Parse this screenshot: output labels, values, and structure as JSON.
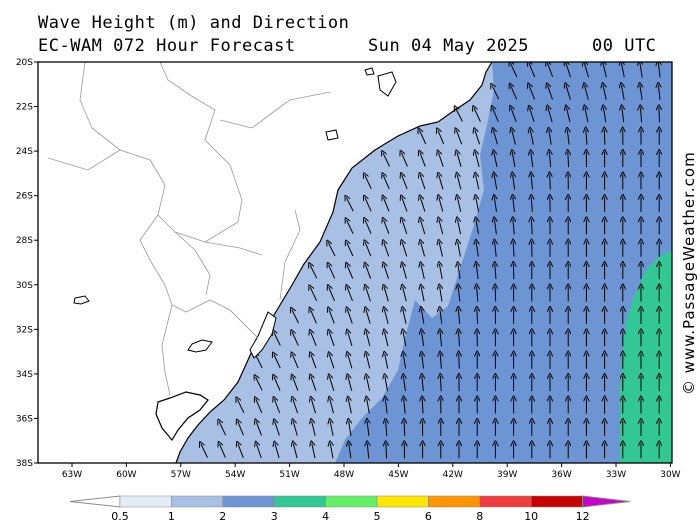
{
  "header": {
    "line1": "Wave Height (m) and Direction",
    "line2": "EC-WAM 072 Hour Forecast",
    "date": "Sun 04 May 2025",
    "time": "00 UTC"
  },
  "map": {
    "lat_labels": [
      "20S",
      "22S",
      "24S",
      "26S",
      "28S",
      "30S",
      "32S",
      "34S",
      "36S",
      "38S"
    ],
    "lon_labels": [
      "63W",
      "60W",
      "57W",
      "54W",
      "51W",
      "48W",
      "45W",
      "42W",
      "39W",
      "36W",
      "33W",
      "30W"
    ],
    "zone_colors": {
      "land": "#ffffff",
      "band_1_2": "#a8c0e4",
      "band_2_3": "#6d94d3",
      "band_3_4": "#32c896"
    },
    "wave_direction": "from the south-east, turning to south offshore",
    "border_color": "#999999",
    "coast_color": "#000000"
  },
  "credit": "© www.PassageWeather.com",
  "colorbar": {
    "labels": [
      "0.5",
      "1",
      "2",
      "3",
      "4",
      "5",
      "6",
      "8",
      "10",
      "12"
    ],
    "colors": [
      "#e4ecf8",
      "#a8c0e4",
      "#6d94d3",
      "#32c896",
      "#64f064",
      "#ffe600",
      "#ff9600",
      "#f03c3c",
      "#c80000",
      "#c800c8"
    ]
  }
}
